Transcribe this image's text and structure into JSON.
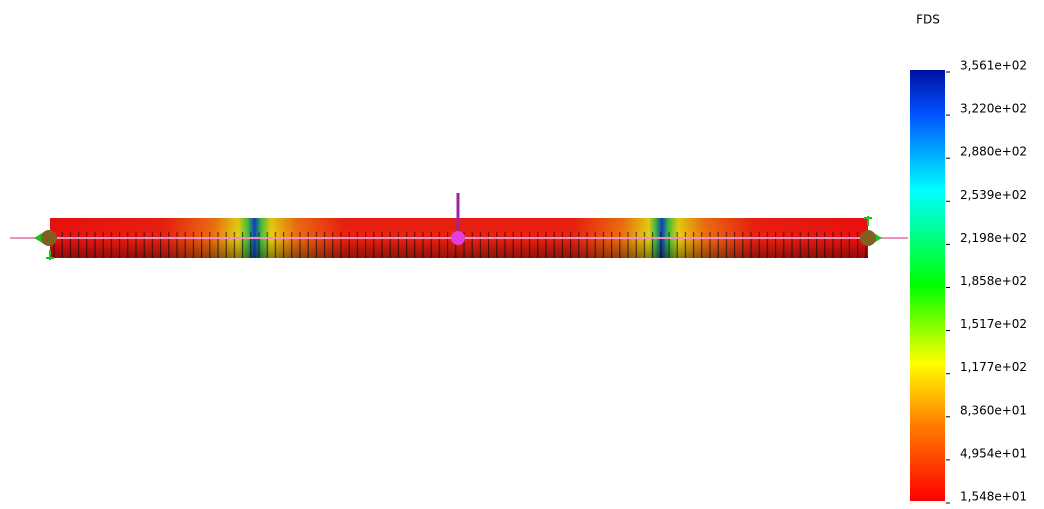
{
  "legend": {
    "title": "FDS",
    "labels": [
      "3,561e+02",
      "3,220e+02",
      "2,880e+02",
      "2,539e+02",
      "2,198e+02",
      "1,858e+02",
      "1,517e+02",
      "1,177e+02",
      "8,360e+01",
      "4,954e+01",
      "1,548e+01"
    ]
  }
}
